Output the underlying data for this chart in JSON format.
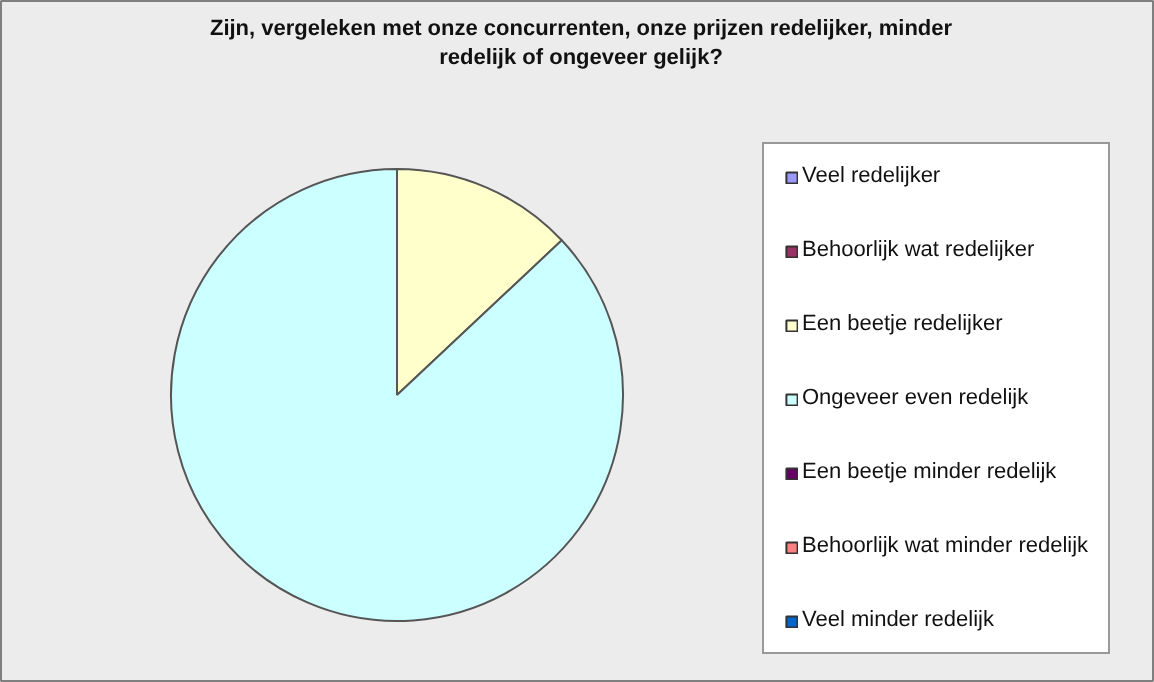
{
  "chart_data": {
    "type": "pie",
    "title": "Zijn, vergeleken met onze concurrenten, onze prijzen redelijker, minder redelijk of ongeveer gelijk?",
    "categories": [
      "Veel redelijker",
      "Behoorlijk wat redelijker",
      "Een beetje redelijker",
      "Ongeveer even redelijk",
      "Een beetje minder redelijk",
      "Behoorlijk wat minder redelijk",
      "Veel minder redelijk"
    ],
    "values": [
      0,
      0,
      13,
      87,
      0,
      0,
      0
    ],
    "colors": [
      "#9999ff",
      "#993366",
      "#ffffcc",
      "#ccffff",
      "#660066",
      "#ff8080",
      "#0066cc"
    ],
    "legend": "right"
  }
}
